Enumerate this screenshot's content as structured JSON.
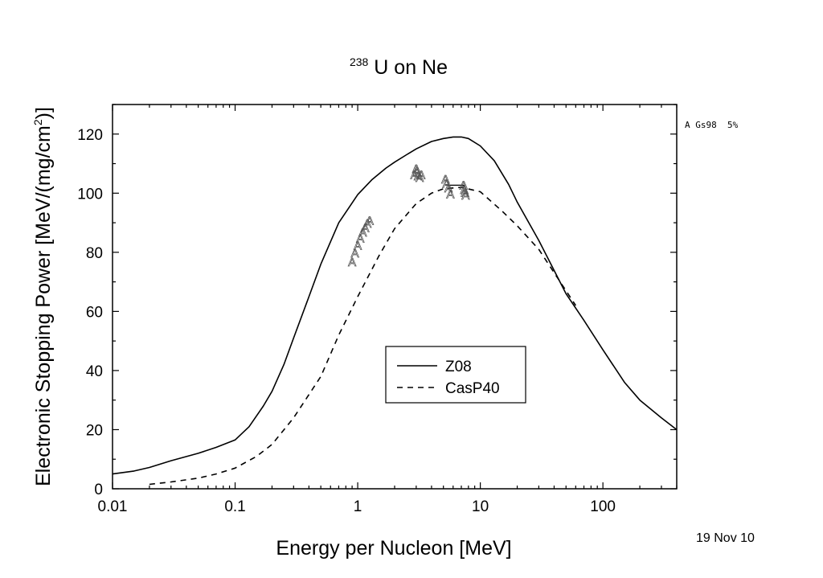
{
  "chart_data": {
    "type": "line",
    "title": {
      "superscript": "238",
      "text": "U on Ne"
    },
    "xlabel": "Energy per Nucleon [MeV]",
    "ylabel": "Electronic Stopping Power [MeV/(mg/cm",
    "ylabel_sup": "2",
    "ylabel_close": ")]",
    "xscale": "log",
    "xlim": [
      0.01,
      400
    ],
    "ylim": [
      0,
      130
    ],
    "x_ticks": [
      {
        "v": 0.01,
        "label": "0.01"
      },
      {
        "v": 0.1,
        "label": "0.1"
      },
      {
        "v": 1,
        "label": "1"
      },
      {
        "v": 10,
        "label": "10"
      },
      {
        "v": 100,
        "label": "100"
      }
    ],
    "y_ticks": [
      {
        "v": 0,
        "label": "0"
      },
      {
        "v": 20,
        "label": "20"
      },
      {
        "v": 40,
        "label": "40"
      },
      {
        "v": 60,
        "label": "60"
      },
      {
        "v": 80,
        "label": "80"
      },
      {
        "v": 100,
        "label": "100"
      },
      {
        "v": 120,
        "label": "120"
      }
    ],
    "grid": false,
    "legend_position": "center-right",
    "series": [
      {
        "name": "Z08",
        "style": "solid",
        "x": [
          0.01,
          0.015,
          0.02,
          0.03,
          0.05,
          0.07,
          0.1,
          0.13,
          0.17,
          0.2,
          0.25,
          0.3,
          0.4,
          0.5,
          0.7,
          1.0,
          1.3,
          1.7,
          2.0,
          2.5,
          3.0,
          4.0,
          5.0,
          6.0,
          7.0,
          8.0,
          10,
          13,
          17,
          20,
          30,
          50,
          70,
          100,
          150,
          200,
          300,
          400
        ],
        "y": [
          5,
          6,
          7.2,
          9.5,
          12,
          14,
          16.5,
          21,
          28,
          33,
          42,
          51,
          65,
          76,
          90,
          99.5,
          104.5,
          108.5,
          110.5,
          113,
          115,
          117.5,
          118.5,
          119,
          119,
          118.5,
          116,
          111,
          103,
          97,
          84,
          66,
          57,
          47,
          36,
          30,
          24,
          20
        ]
      },
      {
        "name": "CasP40",
        "style": "dashed",
        "x": [
          0.02,
          0.03,
          0.05,
          0.07,
          0.1,
          0.15,
          0.2,
          0.3,
          0.5,
          0.7,
          1.0,
          1.5,
          2.0,
          3.0,
          4.0,
          5.0,
          7.0,
          10,
          15,
          20,
          30,
          50,
          60
        ],
        "y": [
          1.5,
          2.3,
          3.6,
          5,
          7,
          11,
          15,
          24,
          38,
          52,
          65,
          79,
          88,
          96.5,
          100,
          101.5,
          102,
          100.5,
          94,
          89,
          81,
          67,
          62
        ]
      },
      {
        "name": "Gs98",
        "style": "markers",
        "marker": "A",
        "x": [
          0.9,
          0.95,
          1.0,
          1.05,
          1.1,
          1.15,
          1.2,
          1.25,
          2.9,
          3.0,
          3.05,
          3.1,
          3.2,
          3.3,
          5.2,
          5.3,
          5.5,
          5.7,
          7.3,
          7.4,
          7.5,
          7.6
        ],
        "y": [
          77,
          80,
          82.5,
          85,
          87,
          88.5,
          90,
          91,
          106.5,
          108.5,
          107.5,
          106,
          105.5,
          106.5,
          105,
          103.5,
          102,
          100,
          103,
          101.5,
          100.5,
          99.5
        ]
      }
    ],
    "fit_line": {
      "x": [
        5.2,
        7.5
      ],
      "y": [
        102.7,
        102.7
      ]
    },
    "legend": [
      {
        "label": "Z08",
        "style": "solid"
      },
      {
        "label": "CasP40",
        "style": "dashed"
      }
    ],
    "annotations": {
      "note": "A Gs98  5%",
      "date": "19 Nov 10"
    }
  }
}
